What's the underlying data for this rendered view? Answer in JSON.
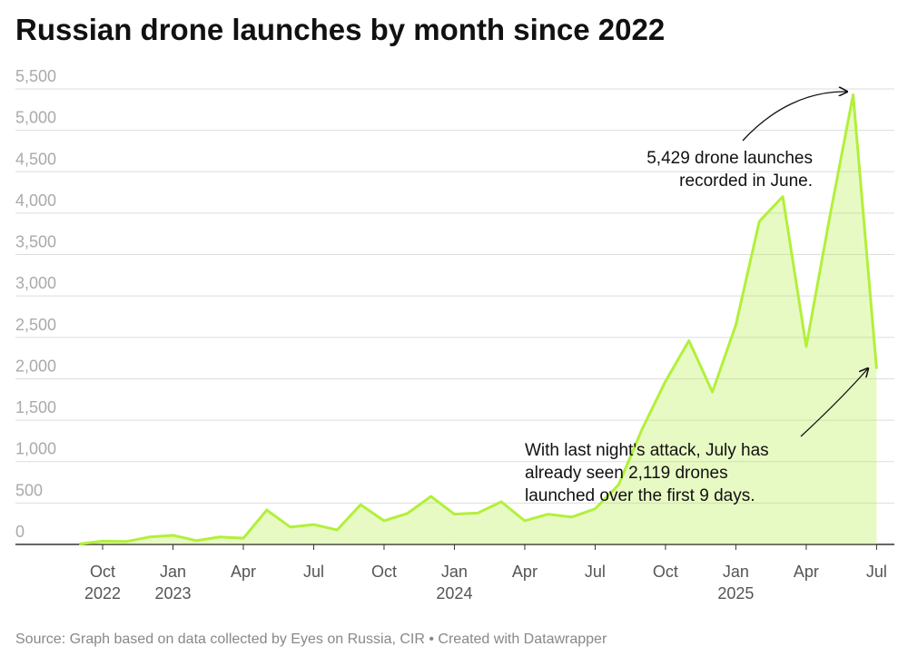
{
  "chart_data": {
    "type": "area",
    "title": "Russian drone launches by month since 2022",
    "source": "Source: Graph based on data collected by Eyes on Russia, CIR • Created with Datawrapper",
    "x": [
      "2022-09",
      "2022-10",
      "2022-11",
      "2022-12",
      "2023-01",
      "2023-02",
      "2023-03",
      "2023-04",
      "2023-05",
      "2023-06",
      "2023-07",
      "2023-08",
      "2023-09",
      "2023-10",
      "2023-11",
      "2023-12",
      "2024-01",
      "2024-02",
      "2024-03",
      "2024-04",
      "2024-05",
      "2024-06",
      "2024-07",
      "2024-08",
      "2024-09",
      "2024-10",
      "2024-11",
      "2024-12",
      "2025-01",
      "2025-02",
      "2025-03",
      "2025-04",
      "2025-05",
      "2025-06",
      "2025-07"
    ],
    "series": [
      {
        "name": "Drone launches",
        "color": "#b2f03a",
        "values": [
          5,
          40,
          35,
          90,
          110,
          45,
          90,
          75,
          415,
          210,
          240,
          175,
          480,
          285,
          375,
          580,
          365,
          380,
          515,
          285,
          365,
          330,
          430,
          720,
          1390,
          1970,
          2460,
          1840,
          2650,
          3900,
          4200,
          2390,
          3950,
          5429,
          2119
        ]
      }
    ],
    "ylim": [
      0,
      5500
    ],
    "yticks": [
      0,
      500,
      {
        "value": 1000,
        "label": "1,000"
      },
      {
        "value": 1500,
        "label": "1,500"
      },
      {
        "value": 2000,
        "label": "2,000"
      },
      {
        "value": 2500,
        "label": "2,500"
      },
      {
        "value": 3000,
        "label": "3,000"
      },
      {
        "value": 3500,
        "label": "3,500"
      },
      {
        "value": 4000,
        "label": "4,000"
      },
      {
        "value": 4500,
        "label": "4,500"
      },
      {
        "value": 5000,
        "label": "5,000"
      },
      {
        "value": 5500,
        "label": "5,500"
      }
    ],
    "xticks": [
      {
        "value": "2022-10",
        "label": "Oct\n2022"
      },
      {
        "value": "2023-01",
        "label": "Jan\n2023"
      },
      {
        "value": "2023-04",
        "label": "Apr"
      },
      {
        "value": "2023-07",
        "label": "Jul"
      },
      {
        "value": "2023-10",
        "label": "Oct"
      },
      {
        "value": "2024-01",
        "label": "Jan\n2024"
      },
      {
        "value": "2024-04",
        "label": "Apr"
      },
      {
        "value": "2024-07",
        "label": "Jul"
      },
      {
        "value": "2024-10",
        "label": "Oct"
      },
      {
        "value": "2025-01",
        "label": "Jan\n2025"
      },
      {
        "value": "2025-04",
        "label": "Apr"
      },
      {
        "value": "2025-07",
        "label": "Jul"
      }
    ],
    "grid": true,
    "annotations": [
      "5,429 drone launches\nrecorded in June.",
      "With last night's attack, July has\nalready seen 2,119 drones\nlaunched over the first 9 days."
    ]
  }
}
